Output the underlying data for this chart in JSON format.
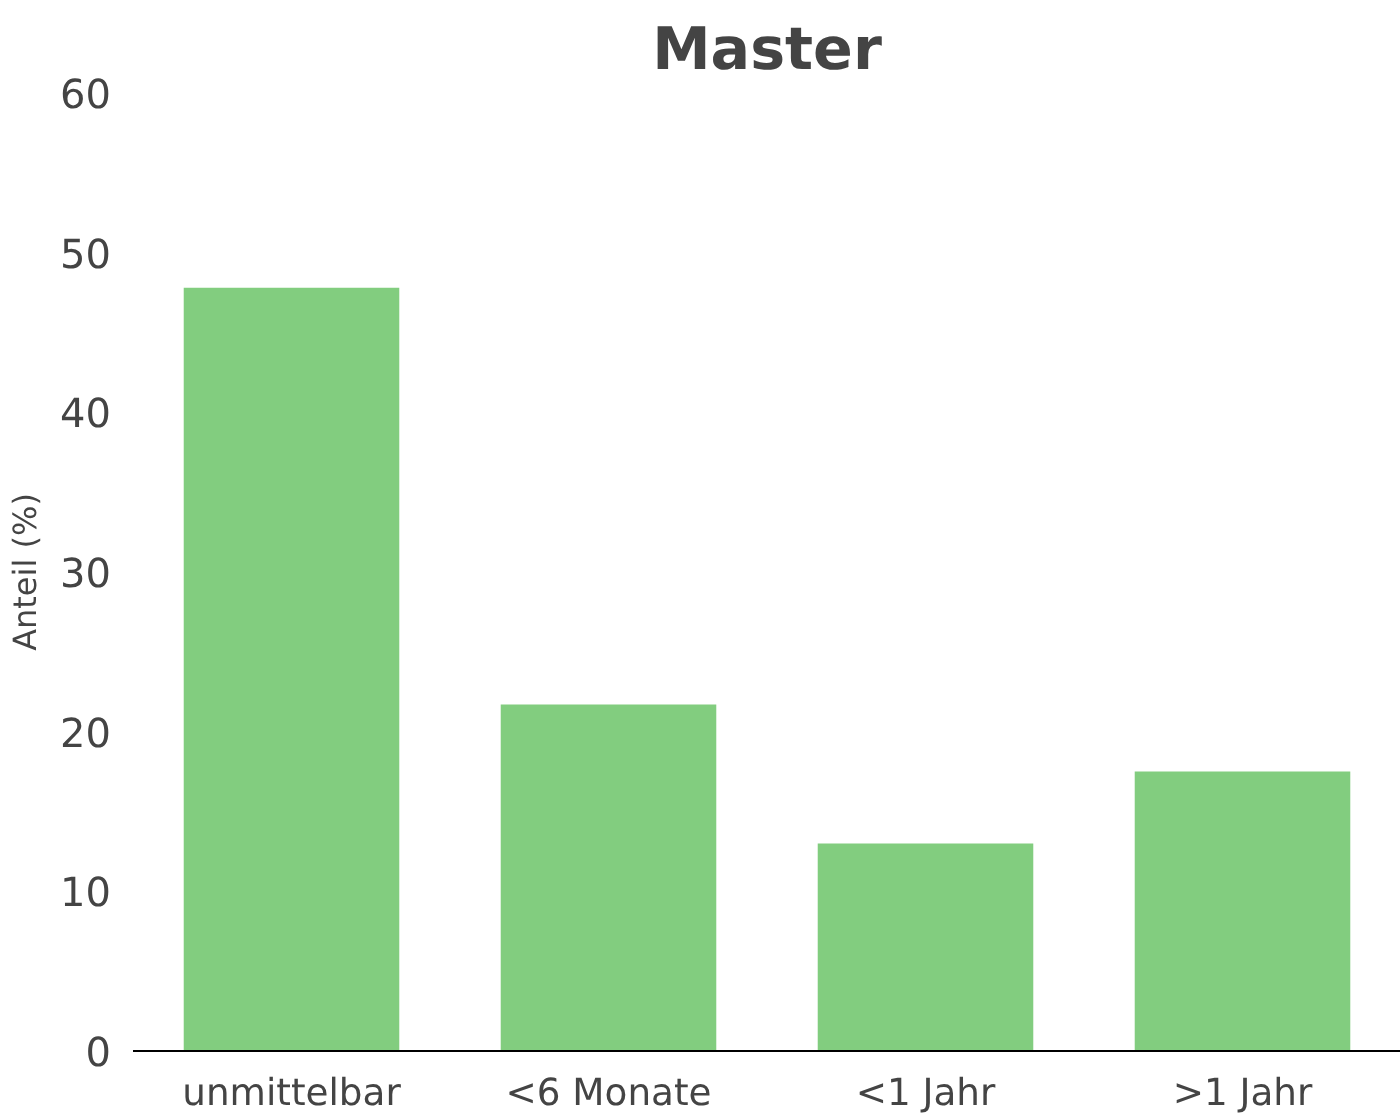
{
  "chart_data": {
    "type": "bar",
    "title": "Master",
    "ylabel": "Anteil (%)",
    "categories": [
      "unmittelbar",
      "<6 Monate",
      "<1 Jahr",
      ">1 Jahr"
    ],
    "values": [
      47.8,
      21.7,
      13.0,
      17.5
    ],
    "color": "#82cd7f",
    "ylim": [
      0,
      60
    ],
    "yticks": [
      0,
      10,
      20,
      30,
      40,
      50,
      60
    ],
    "grid": false
  }
}
